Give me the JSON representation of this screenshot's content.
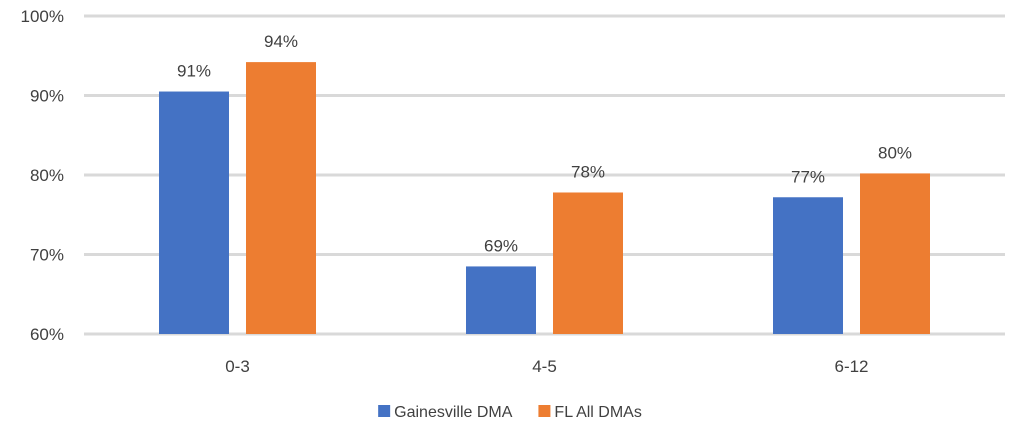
{
  "chart_data": {
    "type": "bar",
    "categories": [
      "0-3",
      "4-5",
      "6-12"
    ],
    "series": [
      {
        "name": "Gainesville DMA",
        "values": [
          90.5,
          68.5,
          77.2
        ],
        "labels": [
          "91%",
          "69%",
          "77%"
        ],
        "color": "#4472C4"
      },
      {
        "name": "FL All DMAs",
        "values": [
          94.2,
          77.8,
          80.2
        ],
        "labels": [
          "94%",
          "78%",
          "80%"
        ],
        "color": "#ED7D31"
      }
    ],
    "ylim": [
      60,
      100
    ],
    "yticks": [
      60,
      70,
      80,
      90,
      100
    ],
    "ytick_labels": [
      "60%",
      "70%",
      "80%",
      "90%",
      "100%"
    ],
    "grid": true,
    "gridline_color": "#D9D9D9",
    "legend_position": "bottom",
    "title": "",
    "xlabel": "",
    "ylabel": ""
  }
}
